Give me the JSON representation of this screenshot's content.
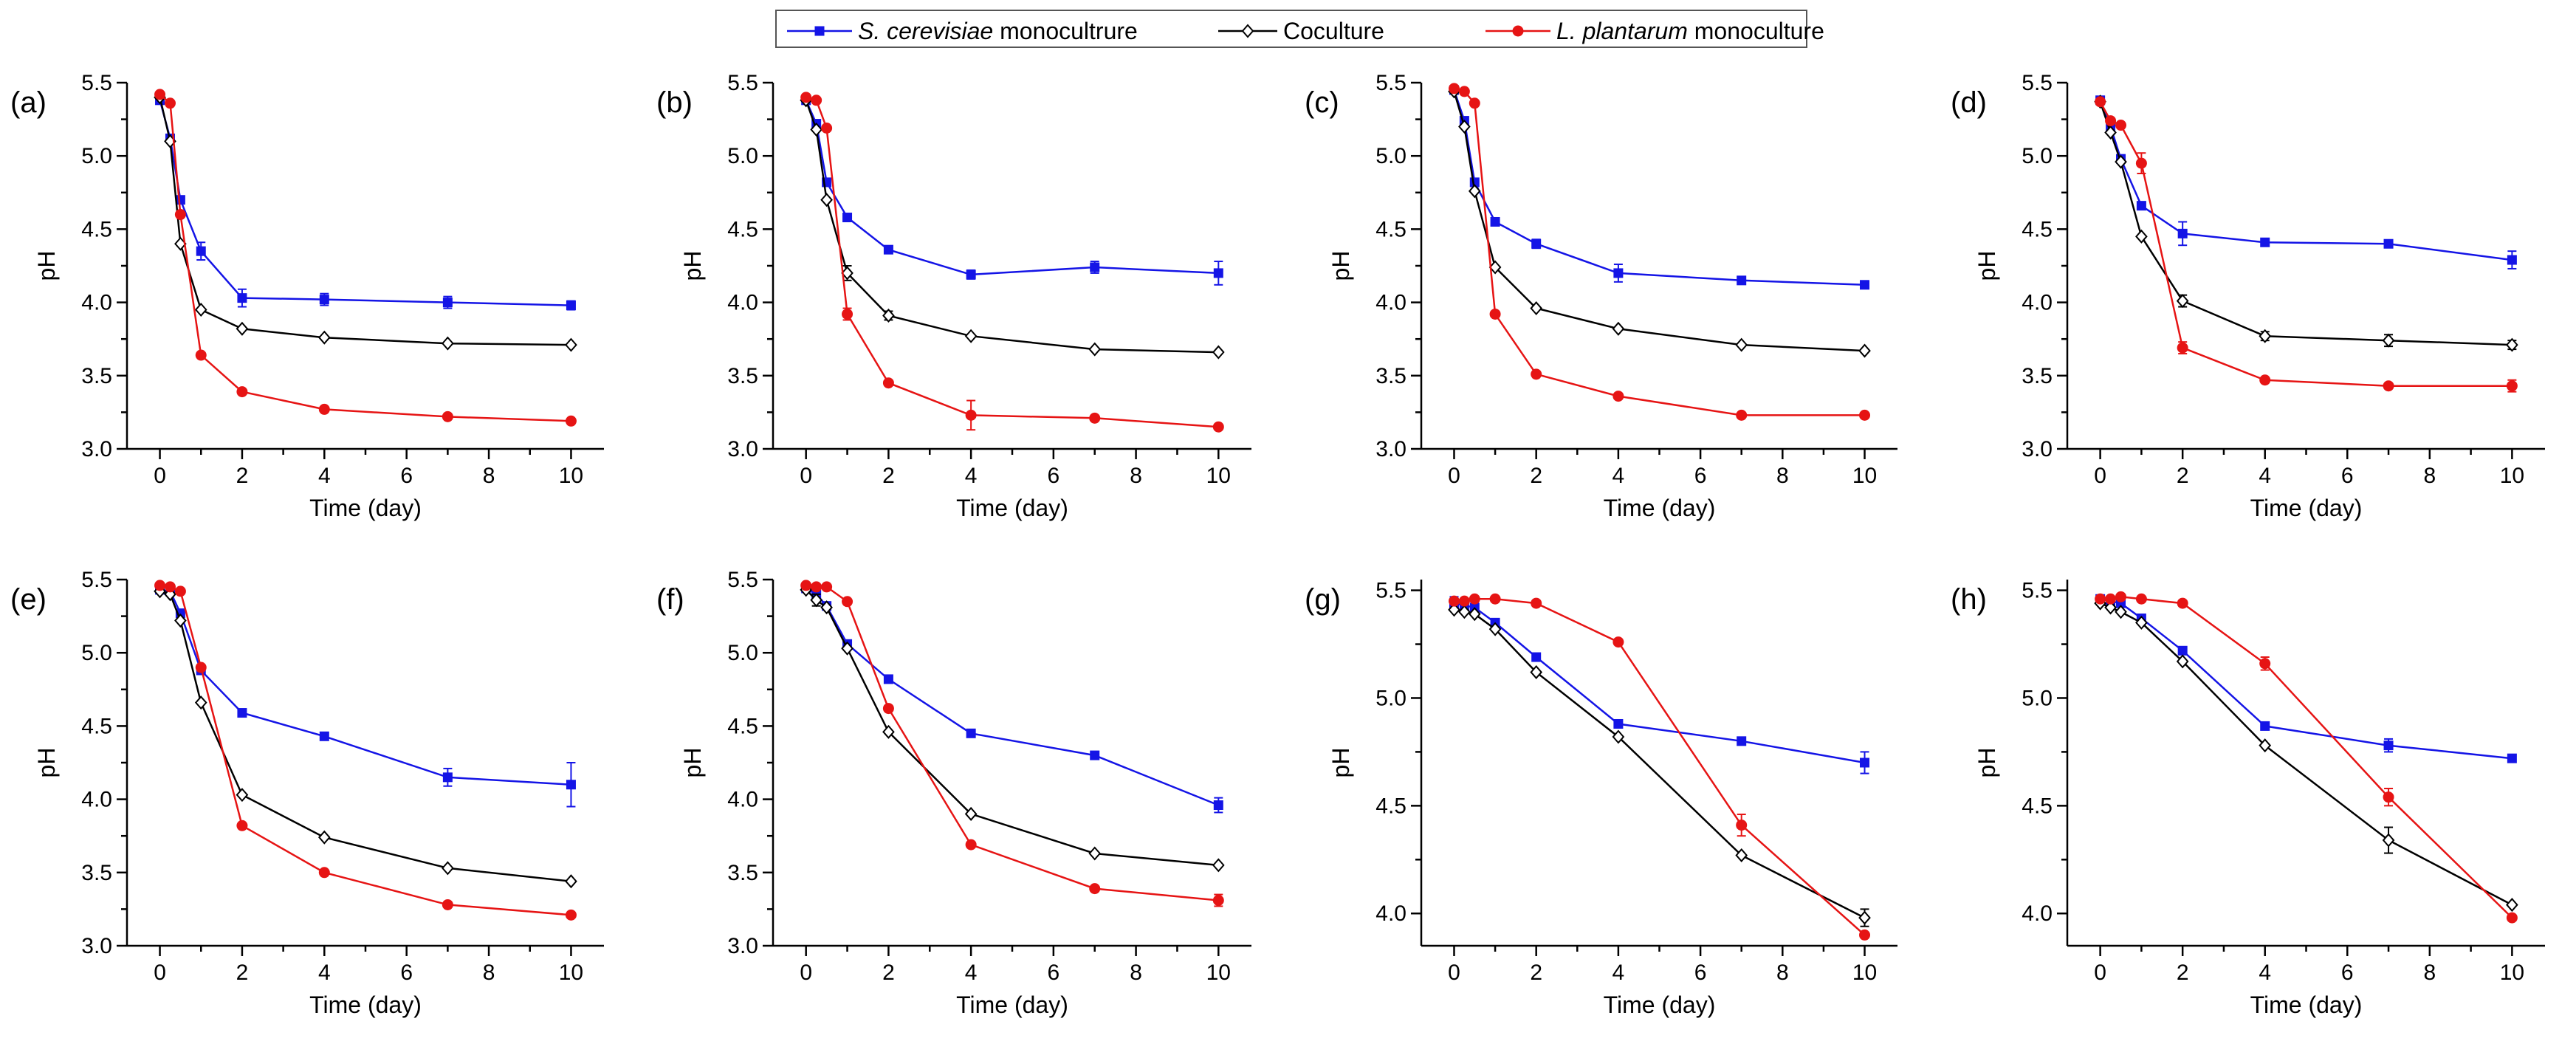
{
  "colors": {
    "s_cerevisiae": "#1414e6",
    "coculture": "#000000",
    "l_plantarum": "#e61414"
  },
  "legend": [
    {
      "key": "s_cerevisiae",
      "italic": "S. cerevisiae",
      "rest": " monocultrure",
      "marker": "square"
    },
    {
      "key": "coculture",
      "italic": "",
      "rest": "Coculture",
      "marker": "diamond"
    },
    {
      "key": "l_plantarum",
      "italic": "L. plantarum",
      "rest": " monoculture",
      "marker": "circle"
    }
  ],
  "chart_data": [
    {
      "panel": "(a)",
      "type": "line",
      "xlabel": "Time (day)",
      "ylabel": "pH",
      "xlim": [
        -0.8,
        10.8
      ],
      "ylim": [
        3.0,
        5.5
      ],
      "xticks": [
        0,
        2,
        4,
        6,
        8,
        10
      ],
      "yticks": [
        3.0,
        3.5,
        4.0,
        4.5,
        5.0,
        5.5
      ],
      "x": [
        0,
        0.25,
        0.5,
        1,
        2,
        4,
        7,
        10
      ],
      "series": [
        {
          "name": "S. cerevisiae monocultrure",
          "key": "s_cerevisiae",
          "values": [
            5.38,
            5.12,
            4.7,
            4.35,
            4.03,
            4.02,
            4.0,
            3.98
          ],
          "errors": [
            0.02,
            0.02,
            0.02,
            0.06,
            0.06,
            0.04,
            0.04,
            0.03
          ]
        },
        {
          "name": "Coculture",
          "key": "coculture",
          "values": [
            5.4,
            5.1,
            4.4,
            3.95,
            3.82,
            3.76,
            3.72,
            3.71
          ],
          "errors": [
            0.02,
            0.02,
            0.02,
            0.02,
            0.02,
            0.02,
            0.02,
            0.02
          ]
        },
        {
          "name": "L. plantarum monoculture",
          "key": "l_plantarum",
          "values": [
            5.42,
            5.36,
            4.6,
            3.64,
            3.39,
            3.27,
            3.22,
            3.19
          ],
          "errors": [
            0.02,
            0.02,
            0.02,
            0.02,
            0.02,
            0.02,
            0.02,
            0.02
          ]
        }
      ]
    },
    {
      "panel": "(b)",
      "type": "line",
      "xlabel": "Time (day)",
      "ylabel": "pH",
      "xlim": [
        -0.8,
        10.8
      ],
      "ylim": [
        3.0,
        5.5
      ],
      "xticks": [
        0,
        2,
        4,
        6,
        8,
        10
      ],
      "yticks": [
        3.0,
        3.5,
        4.0,
        4.5,
        5.0,
        5.5
      ],
      "x": [
        0,
        0.25,
        0.5,
        1,
        2,
        4,
        7,
        10
      ],
      "series": [
        {
          "name": "S. cerevisiae monocultrure",
          "key": "s_cerevisiae",
          "values": [
            5.38,
            5.22,
            4.82,
            4.58,
            4.36,
            4.19,
            4.24,
            4.2
          ],
          "errors": [
            0.02,
            0.02,
            0.02,
            0.02,
            0.02,
            0.03,
            0.04,
            0.08
          ]
        },
        {
          "name": "Coculture",
          "key": "coculture",
          "values": [
            5.38,
            5.18,
            4.7,
            4.2,
            3.91,
            3.77,
            3.68,
            3.66
          ],
          "errors": [
            0.02,
            0.02,
            0.02,
            0.05,
            0.03,
            0.02,
            0.02,
            0.02
          ]
        },
        {
          "name": "L. plantarum monoculture",
          "key": "l_plantarum",
          "values": [
            5.4,
            5.38,
            5.19,
            3.92,
            3.45,
            3.23,
            3.21,
            3.15
          ],
          "errors": [
            0.02,
            0.02,
            0.02,
            0.04,
            0.02,
            0.1,
            0.02,
            0.02
          ]
        }
      ]
    },
    {
      "panel": "(c)",
      "type": "line",
      "xlabel": "Time (day)",
      "ylabel": "pH",
      "xlim": [
        -0.8,
        10.8
      ],
      "ylim": [
        3.0,
        5.5
      ],
      "xticks": [
        0,
        2,
        4,
        6,
        8,
        10
      ],
      "yticks": [
        3.0,
        3.5,
        4.0,
        4.5,
        5.0,
        5.5
      ],
      "x": [
        0,
        0.25,
        0.5,
        1,
        2,
        4,
        7,
        10
      ],
      "series": [
        {
          "name": "S. cerevisiae monocultrure",
          "key": "s_cerevisiae",
          "values": [
            5.45,
            5.24,
            4.82,
            4.55,
            4.4,
            4.2,
            4.15,
            4.12
          ],
          "errors": [
            0.02,
            0.02,
            0.02,
            0.02,
            0.03,
            0.06,
            0.02,
            0.02
          ]
        },
        {
          "name": "Coculture",
          "key": "coculture",
          "values": [
            5.44,
            5.2,
            4.76,
            4.24,
            3.96,
            3.82,
            3.71,
            3.67
          ],
          "errors": [
            0.02,
            0.02,
            0.02,
            0.02,
            0.02,
            0.02,
            0.02,
            0.02
          ]
        },
        {
          "name": "L. plantarum monoculture",
          "key": "l_plantarum",
          "values": [
            5.46,
            5.44,
            5.36,
            3.92,
            3.51,
            3.36,
            3.23,
            3.23
          ],
          "errors": [
            0.02,
            0.02,
            0.02,
            0.02,
            0.02,
            0.02,
            0.02,
            0.02
          ]
        }
      ]
    },
    {
      "panel": "(d)",
      "type": "line",
      "xlabel": "Time (day)",
      "ylabel": "pH",
      "xlim": [
        -0.8,
        10.8
      ],
      "ylim": [
        3.0,
        5.5
      ],
      "xticks": [
        0,
        2,
        4,
        6,
        8,
        10
      ],
      "yticks": [
        3.0,
        3.5,
        4.0,
        4.5,
        5.0,
        5.5
      ],
      "x": [
        0,
        0.25,
        0.5,
        1,
        2,
        4,
        7,
        10
      ],
      "series": [
        {
          "name": "S. cerevisiae monocultrure",
          "key": "s_cerevisiae",
          "values": [
            5.38,
            5.2,
            4.98,
            4.66,
            4.47,
            4.41,
            4.4,
            4.29
          ],
          "errors": [
            0.02,
            0.02,
            0.02,
            0.02,
            0.08,
            0.02,
            0.02,
            0.06
          ]
        },
        {
          "name": "Coculture",
          "key": "coculture",
          "values": [
            5.37,
            5.16,
            4.96,
            4.45,
            4.01,
            3.77,
            3.74,
            3.71
          ],
          "errors": [
            0.02,
            0.02,
            0.02,
            0.02,
            0.04,
            0.03,
            0.04,
            0.03
          ]
        },
        {
          "name": "L. plantarum monoculture",
          "key": "l_plantarum",
          "values": [
            5.37,
            5.24,
            5.21,
            4.95,
            3.69,
            3.47,
            3.43,
            3.43
          ],
          "errors": [
            0.02,
            0.02,
            0.02,
            0.07,
            0.04,
            0.02,
            0.02,
            0.04
          ]
        }
      ]
    },
    {
      "panel": "(e)",
      "type": "line",
      "xlabel": "Time (day)",
      "ylabel": "pH",
      "xlim": [
        -0.8,
        10.8
      ],
      "ylim": [
        3.0,
        5.5
      ],
      "xticks": [
        0,
        2,
        4,
        6,
        8,
        10
      ],
      "yticks": [
        3.0,
        3.5,
        4.0,
        4.5,
        5.0,
        5.5
      ],
      "x": [
        0,
        0.25,
        0.5,
        1,
        2,
        4,
        7,
        10
      ],
      "series": [
        {
          "name": "S. cerevisiae monocultrure",
          "key": "s_cerevisiae",
          "values": [
            5.43,
            5.42,
            5.27,
            4.88,
            4.59,
            4.43,
            4.15,
            4.1
          ],
          "errors": [
            0.02,
            0.02,
            0.02,
            0.02,
            0.02,
            0.02,
            0.06,
            0.15
          ]
        },
        {
          "name": "Coculture",
          "key": "coculture",
          "values": [
            5.42,
            5.4,
            5.22,
            4.66,
            4.03,
            3.74,
            3.53,
            3.44
          ],
          "errors": [
            0.02,
            0.02,
            0.02,
            0.02,
            0.02,
            0.02,
            0.02,
            0.02
          ]
        },
        {
          "name": "L. plantarum monoculture",
          "key": "l_plantarum",
          "values": [
            5.46,
            5.45,
            5.42,
            4.9,
            3.82,
            3.5,
            3.28,
            3.21
          ],
          "errors": [
            0.02,
            0.02,
            0.02,
            0.02,
            0.02,
            0.02,
            0.02,
            0.02
          ]
        }
      ]
    },
    {
      "panel": "(f)",
      "type": "line",
      "xlabel": "Time (day)",
      "ylabel": "pH",
      "xlim": [
        -0.8,
        10.8
      ],
      "ylim": [
        3.0,
        5.5
      ],
      "xticks": [
        0,
        2,
        4,
        6,
        8,
        10
      ],
      "yticks": [
        3.0,
        3.5,
        4.0,
        4.5,
        5.0,
        5.5
      ],
      "x": [
        0,
        0.25,
        0.5,
        1,
        2,
        4,
        7,
        10
      ],
      "series": [
        {
          "name": "S. cerevisiae monocultrure",
          "key": "s_cerevisiae",
          "values": [
            5.44,
            5.4,
            5.32,
            5.06,
            4.82,
            4.45,
            4.3,
            3.96
          ],
          "errors": [
            0.02,
            0.02,
            0.02,
            0.02,
            0.02,
            0.02,
            0.02,
            0.05
          ]
        },
        {
          "name": "Coculture",
          "key": "coculture",
          "values": [
            5.43,
            5.36,
            5.31,
            5.03,
            4.46,
            3.9,
            3.63,
            3.55
          ],
          "errors": [
            0.02,
            0.04,
            0.02,
            0.02,
            0.02,
            0.02,
            0.02,
            0.02
          ]
        },
        {
          "name": "L. plantarum monoculture",
          "key": "l_plantarum",
          "values": [
            5.46,
            5.45,
            5.45,
            5.35,
            4.62,
            3.69,
            3.39,
            3.31
          ],
          "errors": [
            0.02,
            0.02,
            0.02,
            0.02,
            0.02,
            0.02,
            0.02,
            0.04
          ]
        }
      ]
    },
    {
      "panel": "(g)",
      "type": "line",
      "xlabel": "Time (day)",
      "ylabel": "pH",
      "xlim": [
        -0.8,
        10.8
      ],
      "ylim": [
        3.85,
        5.55
      ],
      "xticks": [
        0,
        2,
        4,
        6,
        8,
        10
      ],
      "yticks": [
        4.0,
        4.5,
        5.0,
        5.5
      ],
      "x": [
        0,
        0.25,
        0.5,
        1,
        2,
        4,
        7,
        10
      ],
      "series": [
        {
          "name": "S. cerevisiae monocultrure",
          "key": "s_cerevisiae",
          "values": [
            5.44,
            5.43,
            5.42,
            5.35,
            5.19,
            4.88,
            4.8,
            4.7
          ],
          "errors": [
            0.03,
            0.02,
            0.02,
            0.02,
            0.02,
            0.02,
            0.02,
            0.05
          ]
        },
        {
          "name": "Coculture",
          "key": "coculture",
          "values": [
            5.41,
            5.4,
            5.39,
            5.32,
            5.12,
            4.82,
            4.27,
            3.98
          ],
          "errors": [
            0.02,
            0.02,
            0.02,
            0.02,
            0.02,
            0.02,
            0.02,
            0.04
          ]
        },
        {
          "name": "L. plantarum monoculture",
          "key": "l_plantarum",
          "values": [
            5.45,
            5.45,
            5.46,
            5.46,
            5.44,
            5.26,
            4.41,
            3.9
          ],
          "errors": [
            0.02,
            0.02,
            0.02,
            0.02,
            0.02,
            0.02,
            0.05,
            0.02
          ]
        }
      ]
    },
    {
      "panel": "(h)",
      "type": "line",
      "xlabel": "Time (day)",
      "ylabel": "pH",
      "xlim": [
        -0.8,
        10.8
      ],
      "ylim": [
        3.85,
        5.55
      ],
      "xticks": [
        0,
        2,
        4,
        6,
        8,
        10
      ],
      "yticks": [
        4.0,
        4.5,
        5.0,
        5.5
      ],
      "x": [
        0,
        0.25,
        0.5,
        1,
        2,
        4,
        7,
        10
      ],
      "series": [
        {
          "name": "S. cerevisiae monocultrure",
          "key": "s_cerevisiae",
          "values": [
            5.46,
            5.45,
            5.44,
            5.37,
            5.22,
            4.87,
            4.78,
            4.72
          ],
          "errors": [
            0.02,
            0.02,
            0.02,
            0.02,
            0.02,
            0.02,
            0.03,
            0.02
          ]
        },
        {
          "name": "Coculture",
          "key": "coculture",
          "values": [
            5.44,
            5.42,
            5.4,
            5.35,
            5.17,
            4.78,
            4.34,
            4.04
          ],
          "errors": [
            0.02,
            0.02,
            0.02,
            0.02,
            0.02,
            0.02,
            0.06,
            0.02
          ]
        },
        {
          "name": "L. plantarum monoculture",
          "key": "l_plantarum",
          "values": [
            5.46,
            5.46,
            5.47,
            5.46,
            5.44,
            5.16,
            4.54,
            3.98
          ],
          "errors": [
            0.02,
            0.02,
            0.02,
            0.02,
            0.02,
            0.03,
            0.04,
            0.02
          ]
        }
      ]
    }
  ]
}
